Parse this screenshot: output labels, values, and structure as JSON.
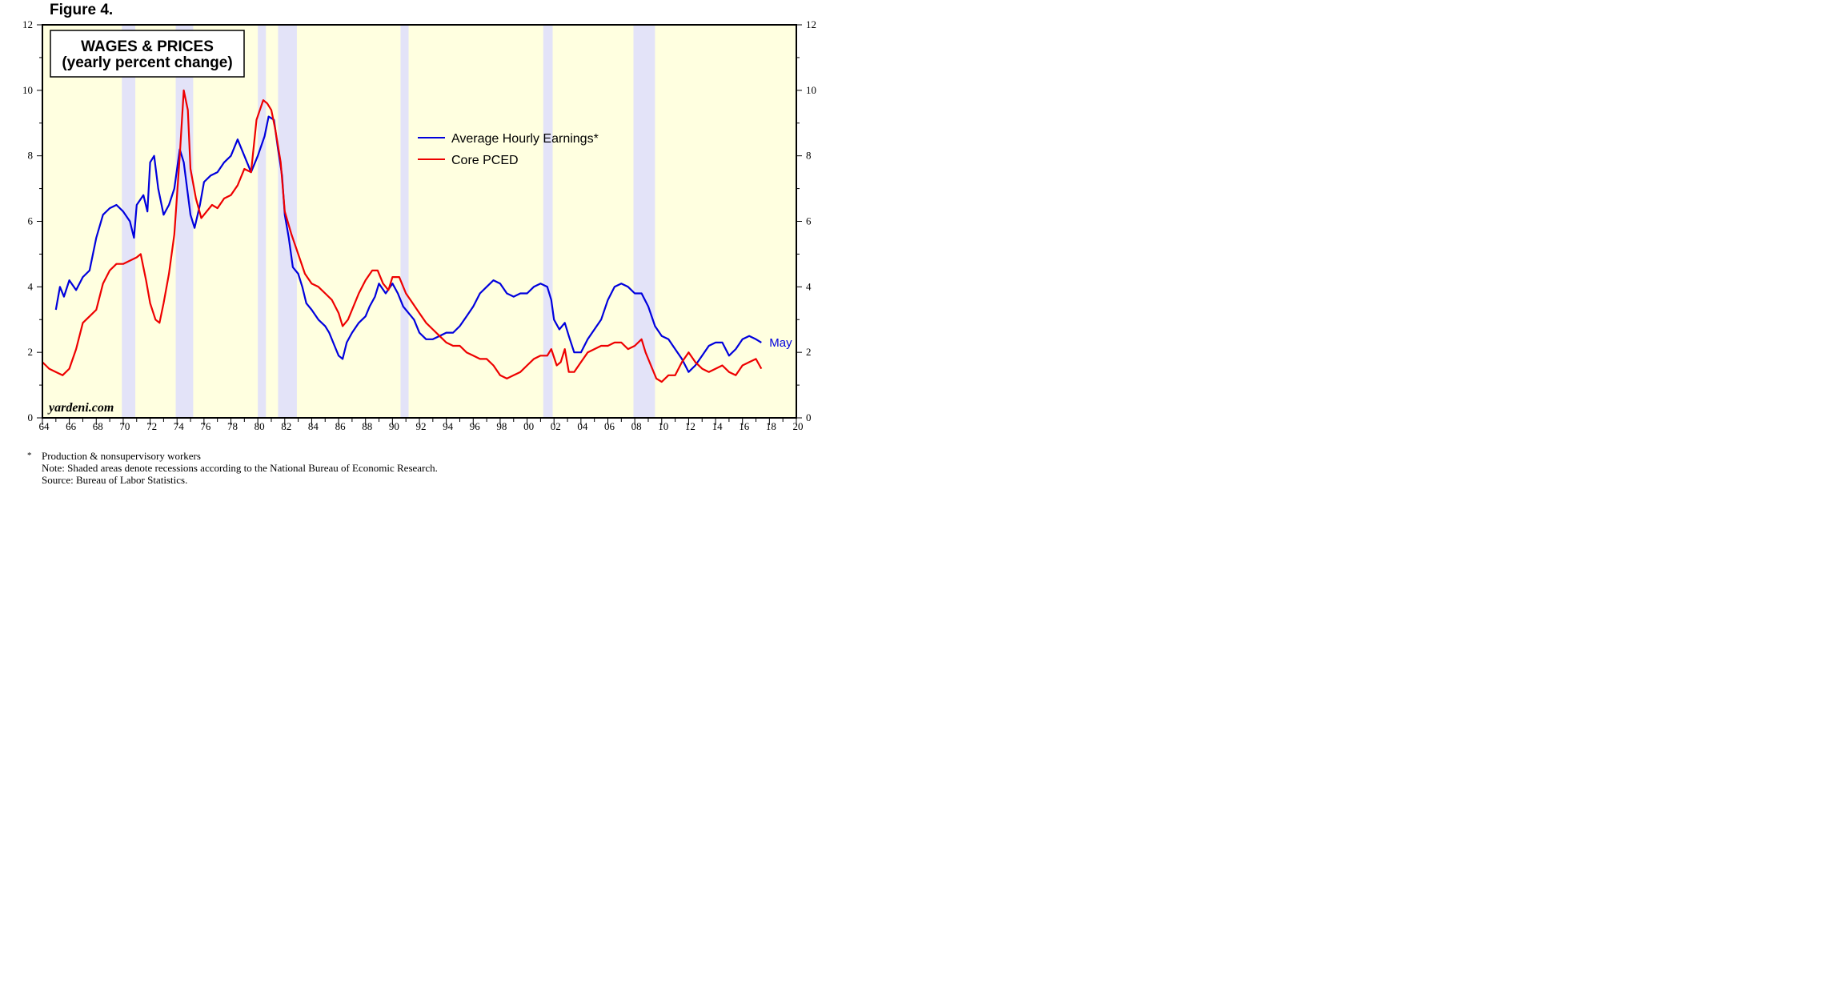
{
  "figure_label": "Figure 4.",
  "chart_data": {
    "type": "line",
    "title": [
      "WAGES & PRICES",
      "(yearly percent change)"
    ],
    "ylim": [
      0,
      12
    ],
    "y_ticks": [
      0,
      2,
      4,
      6,
      8,
      10,
      12
    ],
    "y_tick_labels": [
      "0",
      "2",
      "4",
      "6",
      "8",
      "10",
      "12"
    ],
    "xlim": [
      1964,
      2020
    ],
    "x_tick_labels": [
      "64",
      "66",
      "68",
      "70",
      "72",
      "74",
      "76",
      "78",
      "80",
      "82",
      "84",
      "86",
      "88",
      "90",
      "92",
      "94",
      "96",
      "98",
      "00",
      "02",
      "04",
      "06",
      "08",
      "10",
      "12",
      "14",
      "16",
      "18",
      "20"
    ],
    "x_ticks": [
      1964,
      1966,
      1968,
      1970,
      1972,
      1974,
      1976,
      1978,
      1980,
      1982,
      1984,
      1986,
      1988,
      1990,
      1992,
      1994,
      1996,
      1998,
      2000,
      2002,
      2004,
      2006,
      2008,
      2010,
      2012,
      2014,
      2016,
      2018,
      2020
    ],
    "legend_placement": "upper-center",
    "colors": {
      "background": "#ffffe0",
      "recession": "#e3e3f8",
      "wages": "#0000dd",
      "prices": "#ee0000"
    },
    "recessions": [
      [
        1969.9,
        1970.9
      ],
      [
        1973.9,
        1975.2
      ],
      [
        1980.0,
        1980.6
      ],
      [
        1981.5,
        1982.9
      ],
      [
        1990.6,
        1991.2
      ],
      [
        2001.2,
        2001.9
      ],
      [
        2007.9,
        2009.5
      ]
    ],
    "series": [
      {
        "name": "Average Hourly Earnings*",
        "color": "#0000dd",
        "end_label": "May",
        "points": [
          [
            1965.0,
            3.3
          ],
          [
            1965.3,
            4.0
          ],
          [
            1965.6,
            3.7
          ],
          [
            1966.0,
            4.2
          ],
          [
            1966.5,
            3.9
          ],
          [
            1967.0,
            4.3
          ],
          [
            1967.5,
            4.5
          ],
          [
            1968.0,
            5.5
          ],
          [
            1968.5,
            6.2
          ],
          [
            1969.0,
            6.4
          ],
          [
            1969.5,
            6.5
          ],
          [
            1970.0,
            6.3
          ],
          [
            1970.5,
            6.0
          ],
          [
            1970.8,
            5.5
          ],
          [
            1971.0,
            6.5
          ],
          [
            1971.5,
            6.8
          ],
          [
            1971.8,
            6.3
          ],
          [
            1972.0,
            7.8
          ],
          [
            1972.3,
            8.0
          ],
          [
            1972.6,
            7.0
          ],
          [
            1973.0,
            6.2
          ],
          [
            1973.4,
            6.5
          ],
          [
            1973.8,
            7.0
          ],
          [
            1974.2,
            8.2
          ],
          [
            1974.5,
            7.8
          ],
          [
            1975.0,
            6.2
          ],
          [
            1975.3,
            5.8
          ],
          [
            1975.7,
            6.5
          ],
          [
            1976.0,
            7.2
          ],
          [
            1976.5,
            7.4
          ],
          [
            1977.0,
            7.5
          ],
          [
            1977.5,
            7.8
          ],
          [
            1978.0,
            8.0
          ],
          [
            1978.5,
            8.5
          ],
          [
            1979.0,
            8.0
          ],
          [
            1979.5,
            7.5
          ],
          [
            1980.0,
            8.0
          ],
          [
            1980.5,
            8.6
          ],
          [
            1980.8,
            9.2
          ],
          [
            1981.2,
            9.1
          ],
          [
            1981.5,
            8.2
          ],
          [
            1981.8,
            7.4
          ],
          [
            1982.0,
            6.2
          ],
          [
            1982.3,
            5.5
          ],
          [
            1982.6,
            4.6
          ],
          [
            1983.0,
            4.4
          ],
          [
            1983.3,
            4.0
          ],
          [
            1983.6,
            3.5
          ],
          [
            1984.0,
            3.3
          ],
          [
            1984.5,
            3.0
          ],
          [
            1985.0,
            2.8
          ],
          [
            1985.3,
            2.6
          ],
          [
            1985.7,
            2.2
          ],
          [
            1986.0,
            1.9
          ],
          [
            1986.3,
            1.8
          ],
          [
            1986.6,
            2.3
          ],
          [
            1987.0,
            2.6
          ],
          [
            1987.5,
            2.9
          ],
          [
            1988.0,
            3.1
          ],
          [
            1988.3,
            3.4
          ],
          [
            1988.7,
            3.7
          ],
          [
            1989.0,
            4.1
          ],
          [
            1989.5,
            3.8
          ],
          [
            1990.0,
            4.1
          ],
          [
            1990.4,
            3.8
          ],
          [
            1990.8,
            3.4
          ],
          [
            1991.2,
            3.2
          ],
          [
            1991.6,
            3.0
          ],
          [
            1992.0,
            2.6
          ],
          [
            1992.5,
            2.4
          ],
          [
            1993.0,
            2.4
          ],
          [
            1993.5,
            2.5
          ],
          [
            1994.0,
            2.6
          ],
          [
            1994.5,
            2.6
          ],
          [
            1995.0,
            2.8
          ],
          [
            1995.5,
            3.1
          ],
          [
            1996.0,
            3.4
          ],
          [
            1996.5,
            3.8
          ],
          [
            1997.0,
            4.0
          ],
          [
            1997.5,
            4.2
          ],
          [
            1998.0,
            4.1
          ],
          [
            1998.5,
            3.8
          ],
          [
            1999.0,
            3.7
          ],
          [
            1999.5,
            3.8
          ],
          [
            2000.0,
            3.8
          ],
          [
            2000.5,
            4.0
          ],
          [
            2001.0,
            4.1
          ],
          [
            2001.5,
            4.0
          ],
          [
            2001.8,
            3.6
          ],
          [
            2002.0,
            3.0
          ],
          [
            2002.4,
            2.7
          ],
          [
            2002.8,
            2.9
          ],
          [
            2003.1,
            2.5
          ],
          [
            2003.5,
            2.0
          ],
          [
            2004.0,
            2.0
          ],
          [
            2004.5,
            2.4
          ],
          [
            2005.0,
            2.7
          ],
          [
            2005.5,
            3.0
          ],
          [
            2006.0,
            3.6
          ],
          [
            2006.5,
            4.0
          ],
          [
            2007.0,
            4.1
          ],
          [
            2007.5,
            4.0
          ],
          [
            2008.0,
            3.8
          ],
          [
            2008.5,
            3.8
          ],
          [
            2009.0,
            3.4
          ],
          [
            2009.5,
            2.8
          ],
          [
            2010.0,
            2.5
          ],
          [
            2010.5,
            2.4
          ],
          [
            2011.0,
            2.1
          ],
          [
            2011.5,
            1.8
          ],
          [
            2012.0,
            1.4
          ],
          [
            2012.5,
            1.6
          ],
          [
            2013.0,
            1.9
          ],
          [
            2013.5,
            2.2
          ],
          [
            2014.0,
            2.3
          ],
          [
            2014.5,
            2.3
          ],
          [
            2015.0,
            1.9
          ],
          [
            2015.5,
            2.1
          ],
          [
            2016.0,
            2.4
          ],
          [
            2016.5,
            2.5
          ],
          [
            2017.0,
            2.4
          ],
          [
            2017.4,
            2.3
          ]
        ]
      },
      {
        "name": "Core PCED",
        "color": "#ee0000",
        "points": [
          [
            1964.0,
            1.7
          ],
          [
            1964.5,
            1.5
          ],
          [
            1965.0,
            1.4
          ],
          [
            1965.5,
            1.3
          ],
          [
            1966.0,
            1.5
          ],
          [
            1966.5,
            2.1
          ],
          [
            1967.0,
            2.9
          ],
          [
            1967.5,
            3.1
          ],
          [
            1968.0,
            3.3
          ],
          [
            1968.5,
            4.1
          ],
          [
            1969.0,
            4.5
          ],
          [
            1969.5,
            4.7
          ],
          [
            1970.0,
            4.7
          ],
          [
            1970.5,
            4.8
          ],
          [
            1971.0,
            4.9
          ],
          [
            1971.3,
            5.0
          ],
          [
            1971.7,
            4.2
          ],
          [
            1972.0,
            3.5
          ],
          [
            1972.4,
            3.0
          ],
          [
            1972.7,
            2.9
          ],
          [
            1973.0,
            3.5
          ],
          [
            1973.4,
            4.4
          ],
          [
            1973.8,
            5.6
          ],
          [
            1974.2,
            8.0
          ],
          [
            1974.5,
            10.0
          ],
          [
            1974.8,
            9.4
          ],
          [
            1975.0,
            7.6
          ],
          [
            1975.4,
            6.7
          ],
          [
            1975.8,
            6.1
          ],
          [
            1976.2,
            6.3
          ],
          [
            1976.6,
            6.5
          ],
          [
            1977.0,
            6.4
          ],
          [
            1977.5,
            6.7
          ],
          [
            1978.0,
            6.8
          ],
          [
            1978.5,
            7.1
          ],
          [
            1979.0,
            7.6
          ],
          [
            1979.5,
            7.5
          ],
          [
            1979.9,
            9.1
          ],
          [
            1980.4,
            9.7
          ],
          [
            1980.7,
            9.6
          ],
          [
            1981.0,
            9.4
          ],
          [
            1981.3,
            8.8
          ],
          [
            1981.7,
            7.8
          ],
          [
            1982.0,
            6.3
          ],
          [
            1982.5,
            5.6
          ],
          [
            1983.0,
            5.0
          ],
          [
            1983.5,
            4.4
          ],
          [
            1984.0,
            4.1
          ],
          [
            1984.5,
            4.0
          ],
          [
            1985.0,
            3.8
          ],
          [
            1985.5,
            3.6
          ],
          [
            1986.0,
            3.2
          ],
          [
            1986.3,
            2.8
          ],
          [
            1986.7,
            3.0
          ],
          [
            1987.0,
            3.3
          ],
          [
            1987.5,
            3.8
          ],
          [
            1988.0,
            4.2
          ],
          [
            1988.5,
            4.5
          ],
          [
            1988.9,
            4.5
          ],
          [
            1989.3,
            4.1
          ],
          [
            1989.7,
            3.9
          ],
          [
            1990.0,
            4.3
          ],
          [
            1990.5,
            4.3
          ],
          [
            1991.0,
            3.8
          ],
          [
            1991.5,
            3.5
          ],
          [
            1992.0,
            3.2
          ],
          [
            1992.5,
            2.9
          ],
          [
            1993.0,
            2.7
          ],
          [
            1993.5,
            2.5
          ],
          [
            1994.0,
            2.3
          ],
          [
            1994.5,
            2.2
          ],
          [
            1995.0,
            2.2
          ],
          [
            1995.5,
            2.0
          ],
          [
            1996.0,
            1.9
          ],
          [
            1996.5,
            1.8
          ],
          [
            1997.0,
            1.8
          ],
          [
            1997.5,
            1.6
          ],
          [
            1998.0,
            1.3
          ],
          [
            1998.5,
            1.2
          ],
          [
            1999.0,
            1.3
          ],
          [
            1999.5,
            1.4
          ],
          [
            2000.0,
            1.6
          ],
          [
            2000.5,
            1.8
          ],
          [
            2001.0,
            1.9
          ],
          [
            2001.5,
            1.9
          ],
          [
            2001.8,
            2.1
          ],
          [
            2002.2,
            1.6
          ],
          [
            2002.5,
            1.7
          ],
          [
            2002.8,
            2.1
          ],
          [
            2003.1,
            1.4
          ],
          [
            2003.5,
            1.4
          ],
          [
            2004.0,
            1.7
          ],
          [
            2004.5,
            2.0
          ],
          [
            2005.0,
            2.1
          ],
          [
            2005.5,
            2.2
          ],
          [
            2006.0,
            2.2
          ],
          [
            2006.5,
            2.3
          ],
          [
            2007.0,
            2.3
          ],
          [
            2007.5,
            2.1
          ],
          [
            2008.0,
            2.2
          ],
          [
            2008.5,
            2.4
          ],
          [
            2008.8,
            2.0
          ],
          [
            2009.2,
            1.6
          ],
          [
            2009.6,
            1.2
          ],
          [
            2010.0,
            1.1
          ],
          [
            2010.5,
            1.3
          ],
          [
            2011.0,
            1.3
          ],
          [
            2011.5,
            1.7
          ],
          [
            2012.0,
            2.0
          ],
          [
            2012.5,
            1.7
          ],
          [
            2013.0,
            1.5
          ],
          [
            2013.5,
            1.4
          ],
          [
            2014.0,
            1.5
          ],
          [
            2014.5,
            1.6
          ],
          [
            2015.0,
            1.4
          ],
          [
            2015.5,
            1.3
          ],
          [
            2016.0,
            1.6
          ],
          [
            2016.5,
            1.7
          ],
          [
            2017.0,
            1.8
          ],
          [
            2017.4,
            1.5
          ]
        ]
      }
    ]
  },
  "watermark": "yardeni.com",
  "footnotes": {
    "star": "*",
    "line1": "Production & nonsupervisory workers",
    "line2": "Note: Shaded areas denote recessions according to the National Bureau of Economic Research.",
    "line3": "Source: Bureau of Labor Statistics."
  }
}
